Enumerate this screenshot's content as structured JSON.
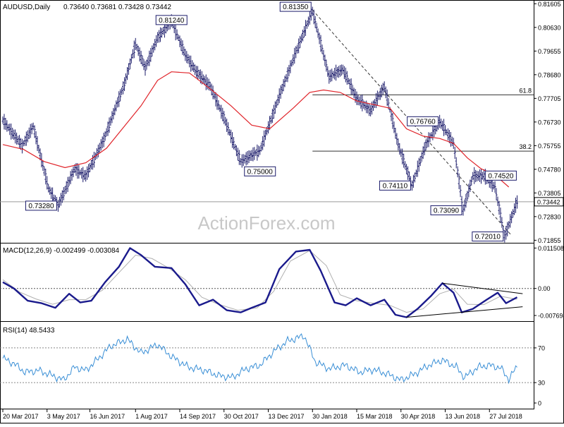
{
  "header": {
    "symbol_label": "AUDUSD,Daily",
    "ohlc_text": "0.73640 0.73681 0.73428 0.73442"
  },
  "watermark": "ActionForex.com",
  "chart_data": [
    {
      "type": "candlestick",
      "title": "AUDUSD,Daily",
      "ohlc": {
        "open": 0.7364,
        "high": 0.73681,
        "low": 0.73428,
        "close": 0.73442
      },
      "current_price": 0.73442,
      "current_price_label": "0.73442",
      "ylim": [
        0.7175,
        0.8176
      ],
      "y_ticks": [
        0.81605,
        0.8063,
        0.79655,
        0.7868,
        0.77705,
        0.7673,
        0.75755,
        0.7478,
        0.73805,
        0.7283,
        0.71855
      ],
      "y_tick_labels": [
        "0.81605",
        "0.80630",
        "0.79655",
        "0.78680",
        "0.77705",
        "0.76730",
        "0.75755",
        "0.74780",
        "0.73805",
        "0.72830",
        "0.71855"
      ],
      "x_ticks": [
        0,
        32,
        63,
        96,
        128,
        160,
        192,
        224,
        256,
        288,
        320,
        352
      ],
      "x_tick_labels": [
        "20 Mar 2017",
        "3 May 2017",
        "16 Jun 2017",
        "1 Aug 2017",
        "14 Sep 2017",
        "30 Oct 2017",
        "13 Dec 2017",
        "30 Jan 2018",
        "15 Mar 2018",
        "30 Apr 2018",
        "13 Jun 2018",
        "27 Jul 2018"
      ],
      "price_path": [
        [
          0,
          0.768
        ],
        [
          14,
          0.7575
        ],
        [
          22,
          0.7655
        ],
        [
          33,
          0.74
        ],
        [
          40,
          0.7328
        ],
        [
          52,
          0.748
        ],
        [
          60,
          0.745
        ],
        [
          73,
          0.76
        ],
        [
          88,
          0.783
        ],
        [
          96,
          0.7995
        ],
        [
          103,
          0.7895
        ],
        [
          112,
          0.802
        ],
        [
          122,
          0.809
        ],
        [
          132,
          0.795
        ],
        [
          140,
          0.788
        ],
        [
          150,
          0.782
        ],
        [
          160,
          0.769
        ],
        [
          172,
          0.751
        ],
        [
          186,
          0.7555
        ],
        [
          200,
          0.778
        ],
        [
          212,
          0.796
        ],
        [
          224,
          0.813
        ],
        [
          236,
          0.786
        ],
        [
          246,
          0.789
        ],
        [
          256,
          0.777
        ],
        [
          266,
          0.772
        ],
        [
          276,
          0.782
        ],
        [
          286,
          0.758
        ],
        [
          296,
          0.7411
        ],
        [
          306,
          0.758
        ],
        [
          316,
          0.7676
        ],
        [
          326,
          0.7585
        ],
        [
          333,
          0.7309
        ],
        [
          340,
          0.745
        ],
        [
          348,
          0.7452
        ],
        [
          356,
          0.7405
        ],
        [
          363,
          0.7201
        ],
        [
          372,
          0.7344
        ]
      ],
      "moving_average": [
        [
          0,
          0.758
        ],
        [
          15,
          0.756
        ],
        [
          30,
          0.751
        ],
        [
          45,
          0.7485
        ],
        [
          60,
          0.7505
        ],
        [
          75,
          0.7565
        ],
        [
          90,
          0.767
        ],
        [
          100,
          0.774
        ],
        [
          112,
          0.7845
        ],
        [
          122,
          0.788
        ],
        [
          135,
          0.7875
        ],
        [
          150,
          0.781
        ],
        [
          165,
          0.774
        ],
        [
          180,
          0.766
        ],
        [
          193,
          0.7645
        ],
        [
          210,
          0.773
        ],
        [
          222,
          0.7795
        ],
        [
          232,
          0.7805
        ],
        [
          244,
          0.7795
        ],
        [
          256,
          0.776
        ],
        [
          268,
          0.7745
        ],
        [
          280,
          0.773
        ],
        [
          292,
          0.7645
        ],
        [
          304,
          0.7615
        ],
        [
          316,
          0.7605
        ],
        [
          326,
          0.7585
        ],
        [
          336,
          0.7525
        ],
        [
          346,
          0.748
        ],
        [
          356,
          0.7455
        ],
        [
          366,
          0.7405
        ]
      ],
      "level_labels": [
        {
          "x": 224,
          "value": 0.8135,
          "text": "0.81350",
          "side": "left"
        },
        {
          "x": 122,
          "value": 0.8124,
          "text": "0.81240",
          "side": "below"
        },
        {
          "x": 186,
          "value": 0.75,
          "text": "0.75000",
          "side": "below"
        },
        {
          "x": 40,
          "value": 0.7328,
          "text": "0.73280",
          "side": "left"
        },
        {
          "x": 296,
          "value": 0.7411,
          "text": "0.74110",
          "side": "left"
        },
        {
          "x": 316,
          "value": 0.7676,
          "text": "0.76760",
          "side": "left"
        },
        {
          "x": 348,
          "value": 0.7452,
          "text": "0.74520",
          "side": "right"
        },
        {
          "x": 333,
          "value": 0.7309,
          "text": "0.73090",
          "side": "left"
        },
        {
          "x": 363,
          "value": 0.7201,
          "text": "0.72010",
          "side": "left"
        }
      ],
      "fib_levels": [
        {
          "label": "61.8",
          "value": 0.7785,
          "x_start": 224
        },
        {
          "label": "38.2",
          "value": 0.7553,
          "x_start": 224
        }
      ],
      "trendlines": [
        {
          "x1": 224,
          "y1": 0.8135,
          "x2": 368,
          "y2": 0.7205
        }
      ]
    },
    {
      "type": "line",
      "title": "MACD(12,26,9) -0.002499 -0.003084",
      "ylim": [
        -0.0093,
        0.0128
      ],
      "y_ticks": [
        0.011508,
        0.0,
        -0.007694
      ],
      "y_tick_labels": [
        "0.011508",
        "0.00",
        "-0.007694"
      ],
      "zero_line": 0.0,
      "series": [
        {
          "values": [
            [
              0,
              0.0018
            ],
            [
              8,
              0.0
            ],
            [
              18,
              -0.0035
            ],
            [
              28,
              -0.0042
            ],
            [
              38,
              -0.0055
            ],
            [
              48,
              -0.0015
            ],
            [
              56,
              -0.004
            ],
            [
              64,
              -0.0035
            ],
            [
              74,
              0.0018
            ],
            [
              84,
              0.0062
            ],
            [
              92,
              0.0115
            ],
            [
              100,
              0.0095
            ],
            [
              110,
              0.0062
            ],
            [
              122,
              0.0058
            ],
            [
              132,
              0.0012
            ],
            [
              142,
              -0.0048
            ],
            [
              152,
              -0.0032
            ],
            [
              162,
              -0.0062
            ],
            [
              172,
              -0.0068
            ],
            [
              180,
              -0.0055
            ],
            [
              190,
              -0.004
            ],
            [
              200,
              0.0055
            ],
            [
              212,
              0.0105
            ],
            [
              222,
              0.011
            ],
            [
              230,
              0.005
            ],
            [
              240,
              -0.004
            ],
            [
              248,
              -0.0048
            ],
            [
              256,
              -0.0028
            ],
            [
              266,
              -0.0048
            ],
            [
              276,
              -0.0032
            ],
            [
              284,
              -0.0075
            ],
            [
              292,
              -0.0082
            ],
            [
              300,
              -0.0058
            ],
            [
              310,
              -0.002
            ],
            [
              318,
              0.0015
            ],
            [
              326,
              -0.0012
            ],
            [
              332,
              -0.0068
            ],
            [
              340,
              -0.0058
            ],
            [
              350,
              -0.0032
            ],
            [
              358,
              -0.0012
            ],
            [
              364,
              -0.0042
            ],
            [
              372,
              -0.0025
            ]
          ]
        },
        {
          "values": [
            [
              0,
              0.0025
            ],
            [
              12,
              -0.001
            ],
            [
              24,
              -0.003
            ],
            [
              36,
              -0.0045
            ],
            [
              48,
              -0.0032
            ],
            [
              60,
              -0.0032
            ],
            [
              72,
              -0.0005
            ],
            [
              84,
              0.0045
            ],
            [
              96,
              0.0095
            ],
            [
              108,
              0.0085
            ],
            [
              120,
              0.0058
            ],
            [
              132,
              0.0025
            ],
            [
              144,
              -0.0025
            ],
            [
              156,
              -0.0045
            ],
            [
              170,
              -0.0062
            ],
            [
              184,
              -0.0055
            ],
            [
              196,
              -0.0008
            ],
            [
              208,
              0.0078
            ],
            [
              222,
              0.0108
            ],
            [
              234,
              0.0065
            ],
            [
              244,
              -0.0018
            ],
            [
              256,
              -0.0035
            ],
            [
              268,
              -0.0042
            ],
            [
              280,
              -0.0048
            ],
            [
              292,
              -0.0068
            ],
            [
              304,
              -0.0058
            ],
            [
              316,
              -0.0015
            ],
            [
              326,
              -0.0002
            ],
            [
              336,
              -0.0045
            ],
            [
              348,
              -0.0046
            ],
            [
              360,
              -0.0022
            ],
            [
              372,
              -0.0031
            ]
          ]
        }
      ],
      "trendlines": [
        {
          "x1": 318,
          "y1": 0.0015,
          "x2": 376,
          "y2": -0.0015
        },
        {
          "x1": 292,
          "y1": -0.0082,
          "x2": 376,
          "y2": -0.0052
        }
      ]
    },
    {
      "type": "line",
      "title": "RSI(14) 48.5433",
      "ylim": [
        0,
        100
      ],
      "y_ticks": [
        70,
        30,
        0
      ],
      "y_tick_labels": [
        "70",
        "30",
        "0"
      ],
      "series": [
        {
          "values": [
            [
              0,
              58
            ],
            [
              8,
              52
            ],
            [
              16,
              42
            ],
            [
              26,
              44
            ],
            [
              36,
              38
            ],
            [
              44,
              33
            ],
            [
              52,
              48
            ],
            [
              60,
              44
            ],
            [
              68,
              56
            ],
            [
              78,
              72
            ],
            [
              90,
              80
            ],
            [
              100,
              64
            ],
            [
              112,
              74
            ],
            [
              122,
              60
            ],
            [
              134,
              48
            ],
            [
              146,
              44
            ],
            [
              156,
              38
            ],
            [
              166,
              36
            ],
            [
              176,
              46
            ],
            [
              186,
              50
            ],
            [
              196,
              66
            ],
            [
              206,
              78
            ],
            [
              218,
              84
            ],
            [
              226,
              54
            ],
            [
              236,
              46
            ],
            [
              248,
              50
            ],
            [
              258,
              42
            ],
            [
              268,
              45
            ],
            [
              278,
              40
            ],
            [
              288,
              33
            ],
            [
              298,
              40
            ],
            [
              308,
              50
            ],
            [
              318,
              56
            ],
            [
              328,
              48
            ],
            [
              334,
              36
            ],
            [
              344,
              48
            ],
            [
              352,
              50
            ],
            [
              360,
              47
            ],
            [
              366,
              34
            ],
            [
              372,
              48.54
            ]
          ]
        }
      ]
    }
  ]
}
